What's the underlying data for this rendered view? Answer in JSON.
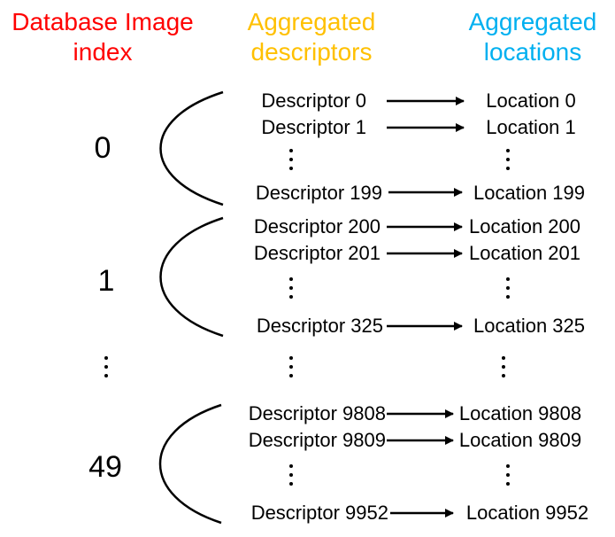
{
  "headers": {
    "index": {
      "line1": "Database Image",
      "line2": "index",
      "color": "#ff0000"
    },
    "descriptors": {
      "line1": "Aggregated",
      "line2": "descriptors",
      "color": "#ffc000"
    },
    "locations": {
      "line1": "Aggregated",
      "line2": "locations",
      "color": "#00b0f0"
    }
  },
  "groups": [
    {
      "index": "0",
      "rows": [
        {
          "descriptor": "Descriptor 0",
          "location": "Location 0"
        },
        {
          "descriptor": "Descriptor 1",
          "location": "Location 1"
        },
        {
          "descriptor": "Descriptor 199",
          "location": "Location 199"
        }
      ]
    },
    {
      "index": "1",
      "rows": [
        {
          "descriptor": "Descriptor 200",
          "location": "Location 200"
        },
        {
          "descriptor": "Descriptor 201",
          "location": "Location 201"
        },
        {
          "descriptor": "Descriptor 325",
          "location": "Location 325"
        }
      ]
    },
    {
      "index": "49",
      "rows": [
        {
          "descriptor": "Descriptor 9808",
          "location": "Location 9808"
        },
        {
          "descriptor": "Descriptor 9809",
          "location": "Location 9809"
        },
        {
          "descriptor": "Descriptor 9952",
          "location": "Location 9952"
        }
      ]
    }
  ]
}
